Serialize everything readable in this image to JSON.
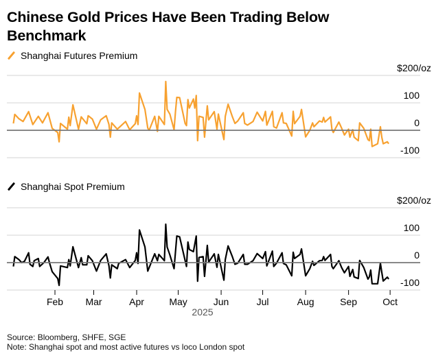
{
  "title": "Chinese Gold Prices Have Been Trading Below Benchmark",
  "source": "Source: Bloomberg, SHFE, SGE",
  "note": "Note: Shanghai spot and most active futures vs loco London spot",
  "chart_data": [
    {
      "type": "line",
      "series": [
        {
          "name": "Shanghai Futures Premium",
          "color": "#f7a130",
          "points": [
            [
              "2025-01-02",
              25
            ],
            [
              "2025-01-03",
              58
            ],
            [
              "2025-01-06",
              42
            ],
            [
              "2025-01-09",
              32
            ],
            [
              "2025-01-13",
              68
            ],
            [
              "2025-01-16",
              21
            ],
            [
              "2025-01-20",
              51
            ],
            [
              "2025-01-23",
              27
            ],
            [
              "2025-01-27",
              64
            ],
            [
              "2025-01-30",
              7
            ],
            [
              "2025-02-03",
              -8
            ],
            [
              "2025-02-04",
              -42
            ],
            [
              "2025-02-05",
              25
            ],
            [
              "2025-02-10",
              4
            ],
            [
              "2025-02-11",
              48
            ],
            [
              "2025-02-12",
              17
            ],
            [
              "2025-02-14",
              93
            ],
            [
              "2025-02-18",
              4
            ],
            [
              "2025-02-20",
              49
            ],
            [
              "2025-02-24",
              24
            ],
            [
              "2025-02-25",
              53
            ],
            [
              "2025-02-28",
              41
            ],
            [
              "2025-03-03",
              4
            ],
            [
              "2025-03-06",
              38
            ],
            [
              "2025-03-10",
              53
            ],
            [
              "2025-03-12",
              21
            ],
            [
              "2025-03-13",
              -25
            ],
            [
              "2025-03-14",
              27
            ],
            [
              "2025-03-18",
              4
            ],
            [
              "2025-03-24",
              32
            ],
            [
              "2025-03-27",
              2
            ],
            [
              "2025-03-31",
              24
            ],
            [
              "2025-04-01",
              53
            ],
            [
              "2025-04-02",
              21
            ],
            [
              "2025-04-03",
              136
            ],
            [
              "2025-04-07",
              76
            ],
            [
              "2025-04-09",
              8
            ],
            [
              "2025-04-10",
              0
            ],
            [
              "2025-04-14",
              51
            ],
            [
              "2025-04-16",
              -4
            ],
            [
              "2025-04-17",
              51
            ],
            [
              "2025-04-21",
              21
            ],
            [
              "2025-04-22",
              178
            ],
            [
              "2025-04-23",
              76
            ],
            [
              "2025-04-25",
              59
            ],
            [
              "2025-04-28",
              2
            ],
            [
              "2025-04-29",
              66
            ],
            [
              "2025-04-30",
              120
            ],
            [
              "2025-05-02",
              119
            ],
            [
              "2025-05-06",
              25
            ],
            [
              "2025-05-07",
              17
            ],
            [
              "2025-05-08",
              112
            ],
            [
              "2025-05-09",
              81
            ],
            [
              "2025-05-12",
              114
            ],
            [
              "2025-05-13",
              81
            ],
            [
              "2025-05-14",
              127
            ],
            [
              "2025-05-15",
              -38
            ],
            [
              "2025-05-16",
              51
            ],
            [
              "2025-05-19",
              47
            ],
            [
              "2025-05-20",
              -25
            ],
            [
              "2025-05-22",
              89
            ],
            [
              "2025-05-23",
              38
            ],
            [
              "2025-05-27",
              68
            ],
            [
              "2025-05-29",
              4
            ],
            [
              "2025-05-30",
              59
            ],
            [
              "2025-06-03",
              -34
            ],
            [
              "2025-06-04",
              51
            ],
            [
              "2025-06-06",
              95
            ],
            [
              "2025-06-09",
              51
            ],
            [
              "2025-06-11",
              25
            ],
            [
              "2025-06-13",
              34
            ],
            [
              "2025-06-17",
              64
            ],
            [
              "2025-06-18",
              25
            ],
            [
              "2025-06-20",
              19
            ],
            [
              "2025-06-24",
              32
            ],
            [
              "2025-06-27",
              66
            ],
            [
              "2025-07-01",
              34
            ],
            [
              "2025-07-03",
              69
            ],
            [
              "2025-07-04",
              19
            ],
            [
              "2025-07-08",
              69
            ],
            [
              "2025-07-09",
              13
            ],
            [
              "2025-07-11",
              8
            ],
            [
              "2025-07-15",
              64
            ],
            [
              "2025-07-16",
              27
            ],
            [
              "2025-07-18",
              25
            ],
            [
              "2025-07-22",
              -21
            ],
            [
              "2025-07-23",
              69
            ],
            [
              "2025-07-24",
              24
            ],
            [
              "2025-07-28",
              51
            ],
            [
              "2025-07-29",
              76
            ],
            [
              "2025-08-01",
              -24
            ],
            [
              "2025-08-04",
              0
            ],
            [
              "2025-08-06",
              27
            ],
            [
              "2025-08-07",
              13
            ],
            [
              "2025-08-11",
              34
            ],
            [
              "2025-08-13",
              30
            ],
            [
              "2025-08-14",
              47
            ],
            [
              "2025-08-15",
              30
            ],
            [
              "2025-08-19",
              49
            ],
            [
              "2025-08-20",
              4
            ],
            [
              "2025-08-21",
              -8
            ],
            [
              "2025-08-25",
              30
            ],
            [
              "2025-08-27",
              8
            ],
            [
              "2025-08-29",
              -17
            ],
            [
              "2025-09-01",
              4
            ],
            [
              "2025-09-02",
              -25
            ],
            [
              "2025-09-04",
              2
            ],
            [
              "2025-09-05",
              -25
            ],
            [
              "2025-09-08",
              -38
            ],
            [
              "2025-09-09",
              27
            ],
            [
              "2025-09-12",
              7
            ],
            [
              "2025-09-15",
              -34
            ],
            [
              "2025-09-16",
              -38
            ],
            [
              "2025-09-17",
              4
            ],
            [
              "2025-09-18",
              -59
            ],
            [
              "2025-09-22",
              -49
            ],
            [
              "2025-09-24",
              13
            ],
            [
              "2025-09-25",
              -25
            ],
            [
              "2025-09-26",
              -49
            ],
            [
              "2025-09-29",
              -42
            ],
            [
              "2025-09-30",
              -49
            ]
          ]
        }
      ],
      "ylim": [
        -100,
        200
      ],
      "yticks": [
        "-100",
        "0",
        "100",
        "$200/oz"
      ],
      "ytick_values": [
        -100,
        0,
        100,
        200
      ],
      "grid": true,
      "zero_line": true
    },
    {
      "type": "line",
      "series": [
        {
          "name": "Shanghai Spot Premium",
          "color": "#000000",
          "points": [
            [
              "2025-01-02",
              -14
            ],
            [
              "2025-01-03",
              22
            ],
            [
              "2025-01-06",
              11
            ],
            [
              "2025-01-08",
              0
            ],
            [
              "2025-01-10",
              5
            ],
            [
              "2025-01-13",
              36
            ],
            [
              "2025-01-14",
              -6
            ],
            [
              "2025-01-16",
              -14
            ],
            [
              "2025-01-17",
              7
            ],
            [
              "2025-01-20",
              15
            ],
            [
              "2025-01-21",
              -14
            ],
            [
              "2025-01-24",
              0
            ],
            [
              "2025-01-27",
              21
            ],
            [
              "2025-01-28",
              0
            ],
            [
              "2025-01-30",
              -33
            ],
            [
              "2025-02-03",
              -58
            ],
            [
              "2025-02-04",
              -83
            ],
            [
              "2025-02-05",
              -12
            ],
            [
              "2025-02-10",
              -18
            ],
            [
              "2025-02-11",
              11
            ],
            [
              "2025-02-12",
              -12
            ],
            [
              "2025-02-14",
              58
            ],
            [
              "2025-02-18",
              -18
            ],
            [
              "2025-02-20",
              18
            ],
            [
              "2025-02-21",
              -8
            ],
            [
              "2025-02-24",
              -8
            ],
            [
              "2025-02-25",
              25
            ],
            [
              "2025-02-28",
              7
            ],
            [
              "2025-03-03",
              -31
            ],
            [
              "2025-03-06",
              8
            ],
            [
              "2025-03-10",
              32
            ],
            [
              "2025-03-12",
              -12
            ],
            [
              "2025-03-13",
              -56
            ],
            [
              "2025-03-14",
              -8
            ],
            [
              "2025-03-18",
              -22
            ],
            [
              "2025-03-19",
              -3
            ],
            [
              "2025-03-24",
              11
            ],
            [
              "2025-03-27",
              -18
            ],
            [
              "2025-03-31",
              8
            ],
            [
              "2025-04-01",
              36
            ],
            [
              "2025-04-02",
              -3
            ],
            [
              "2025-04-03",
              119
            ],
            [
              "2025-04-07",
              57
            ],
            [
              "2025-04-09",
              -31
            ],
            [
              "2025-04-14",
              32
            ],
            [
              "2025-04-16",
              7
            ],
            [
              "2025-04-17",
              30
            ],
            [
              "2025-04-21",
              7
            ],
            [
              "2025-04-22",
              140
            ],
            [
              "2025-04-23",
              57
            ],
            [
              "2025-04-25",
              28
            ],
            [
              "2025-04-28",
              -22
            ],
            [
              "2025-04-30",
              97
            ],
            [
              "2025-05-02",
              94
            ],
            [
              "2025-05-07",
              -14
            ],
            [
              "2025-05-08",
              75
            ],
            [
              "2025-05-09",
              48
            ],
            [
              "2025-05-12",
              40
            ],
            [
              "2025-05-14",
              97
            ],
            [
              "2025-05-15",
              -68
            ],
            [
              "2025-05-16",
              19
            ],
            [
              "2025-05-19",
              22
            ],
            [
              "2025-05-20",
              -50
            ],
            [
              "2025-05-22",
              63
            ],
            [
              "2025-05-23",
              2
            ],
            [
              "2025-05-27",
              32
            ],
            [
              "2025-05-29",
              -17
            ],
            [
              "2025-05-30",
              30
            ],
            [
              "2025-06-03",
              -64
            ],
            [
              "2025-06-04",
              11
            ],
            [
              "2025-06-06",
              61
            ],
            [
              "2025-06-09",
              23
            ],
            [
              "2025-06-11",
              -6
            ],
            [
              "2025-06-13",
              -2
            ],
            [
              "2025-06-17",
              30
            ],
            [
              "2025-06-18",
              -6
            ],
            [
              "2025-06-20",
              -6
            ],
            [
              "2025-06-24",
              7
            ],
            [
              "2025-06-27",
              33
            ],
            [
              "2025-07-01",
              15
            ],
            [
              "2025-07-03",
              40
            ],
            [
              "2025-07-04",
              -12
            ],
            [
              "2025-07-08",
              42
            ],
            [
              "2025-07-09",
              -14
            ],
            [
              "2025-07-11",
              -2
            ],
            [
              "2025-07-15",
              36
            ],
            [
              "2025-07-16",
              -3
            ],
            [
              "2025-07-18",
              -8
            ],
            [
              "2025-07-22",
              -48
            ],
            [
              "2025-07-23",
              38
            ],
            [
              "2025-07-24",
              15
            ],
            [
              "2025-07-28",
              30
            ],
            [
              "2025-07-29",
              50
            ],
            [
              "2025-08-01",
              -48
            ],
            [
              "2025-08-04",
              -22
            ],
            [
              "2025-08-06",
              5
            ],
            [
              "2025-08-07",
              -10
            ],
            [
              "2025-08-11",
              7
            ],
            [
              "2025-08-13",
              8
            ],
            [
              "2025-08-14",
              22
            ],
            [
              "2025-08-15",
              8
            ],
            [
              "2025-08-19",
              30
            ],
            [
              "2025-08-20",
              -14
            ],
            [
              "2025-08-21",
              -22
            ],
            [
              "2025-08-25",
              7
            ],
            [
              "2025-08-27",
              -18
            ],
            [
              "2025-08-29",
              -37
            ],
            [
              "2025-09-01",
              -14
            ],
            [
              "2025-09-02",
              -50
            ],
            [
              "2025-09-04",
              -25
            ],
            [
              "2025-09-05",
              -52
            ],
            [
              "2025-09-08",
              -58
            ],
            [
              "2025-09-09",
              8
            ],
            [
              "2025-09-12",
              -18
            ],
            [
              "2025-09-15",
              -60
            ],
            [
              "2025-09-16",
              -52
            ],
            [
              "2025-09-17",
              -27
            ],
            [
              "2025-09-18",
              -77
            ],
            [
              "2025-09-22",
              -77
            ],
            [
              "2025-09-24",
              -2
            ],
            [
              "2025-09-25",
              -35
            ],
            [
              "2025-09-26",
              -67
            ],
            [
              "2025-09-29",
              -53
            ],
            [
              "2025-09-30",
              -60
            ]
          ]
        }
      ],
      "ylim": [
        -100,
        200
      ],
      "yticks": [
        "-100",
        "0",
        "100",
        "$200/oz"
      ],
      "ytick_values": [
        -100,
        0,
        100,
        200
      ],
      "xticks": [
        "Feb",
        "Mar",
        "Apr",
        "May",
        "Jun",
        "Jul",
        "Aug",
        "Sep",
        "Oct"
      ],
      "xtick_dates": [
        "2025-02-01",
        "2025-03-01",
        "2025-04-01",
        "2025-05-01",
        "2025-06-01",
        "2025-07-01",
        "2025-08-01",
        "2025-09-01",
        "2025-10-01"
      ],
      "xlabel": "2025",
      "grid": true,
      "zero_line": true
    }
  ]
}
